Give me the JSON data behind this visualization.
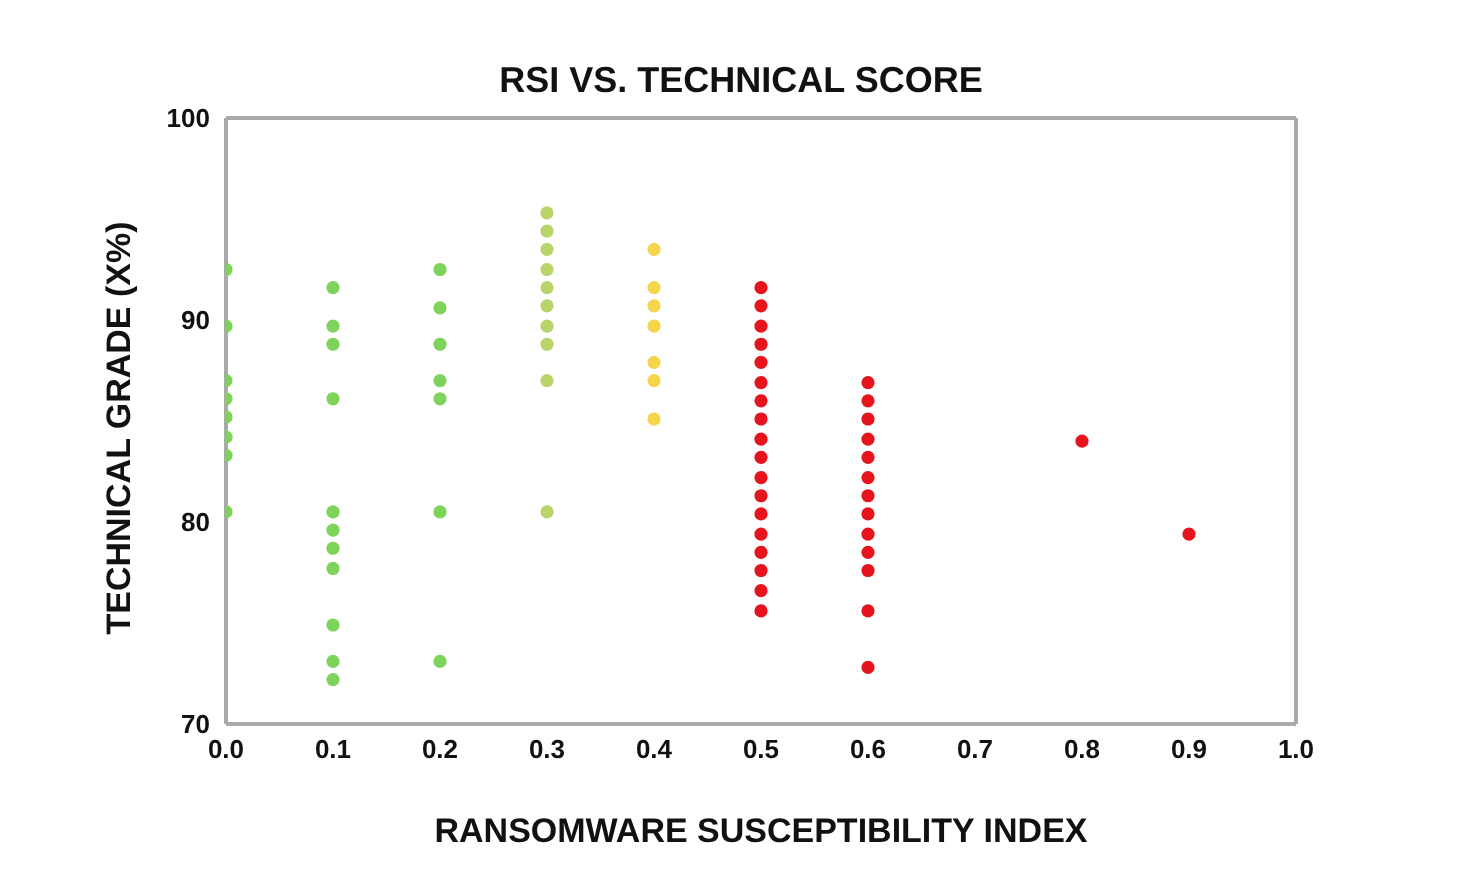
{
  "chart_data": {
    "type": "scatter",
    "title": "RSI VS. TECHNICAL SCORE",
    "xlabel": "RANSOMWARE SUSCEPTIBILITY INDEX",
    "ylabel": "TECHNICAL GRADE (X%)",
    "series": [
      {
        "color": "#7ed35a",
        "x": [
          0,
          0,
          0,
          0,
          0,
          0,
          0,
          0,
          0.1,
          0.1,
          0.1,
          0.1,
          0.1,
          0.1,
          0.1,
          0.1,
          0.1,
          0.1,
          0.1,
          0.2,
          0.2,
          0.2,
          0.2,
          0.2,
          0.2,
          0.2
        ],
        "values": [
          92.5,
          89.7,
          87.0,
          86.1,
          85.2,
          84.2,
          83.3,
          80.5,
          91.6,
          89.7,
          88.8,
          86.1,
          80.5,
          79.6,
          78.7,
          77.7,
          74.9,
          73.1,
          72.2,
          92.5,
          90.6,
          88.8,
          87.0,
          86.1,
          80.5,
          73.1
        ]
      },
      {
        "color": "#b9d46b",
        "x": [
          0.3,
          0.3,
          0.3,
          0.3,
          0.3,
          0.3,
          0.3,
          0.3,
          0.3,
          0.3
        ],
        "values": [
          95.3,
          94.4,
          93.5,
          92.5,
          91.6,
          90.7,
          89.7,
          88.8,
          87.0,
          80.5
        ]
      },
      {
        "color": "#f5d54c",
        "x": [
          0.4,
          0.4,
          0.4,
          0.4,
          0.4,
          0.4,
          0.4
        ],
        "values": [
          93.5,
          91.6,
          90.7,
          89.7,
          87.9,
          87.0,
          85.1
        ]
      },
      {
        "color": "#e5141d",
        "x": [
          0.5,
          0.5,
          0.5,
          0.5,
          0.5,
          0.5,
          0.5,
          0.5,
          0.5,
          0.5,
          0.5,
          0.5,
          0.5,
          0.5,
          0.5,
          0.5,
          0.5,
          0.5,
          0.6,
          0.6,
          0.6,
          0.6,
          0.6,
          0.6,
          0.6,
          0.6,
          0.6,
          0.6,
          0.6,
          0.6,
          0.6,
          0.8,
          0.9
        ],
        "values": [
          91.6,
          90.7,
          89.7,
          88.8,
          87.9,
          86.9,
          86.0,
          85.1,
          84.1,
          83.2,
          82.2,
          81.3,
          80.4,
          79.4,
          78.5,
          77.6,
          76.6,
          75.6,
          86.9,
          86.0,
          85.1,
          84.1,
          83.2,
          82.2,
          81.3,
          80.4,
          79.4,
          78.5,
          77.6,
          75.6,
          72.8,
          84.0,
          79.4
        ]
      }
    ],
    "xlim": [
      0,
      1
    ],
    "xticks": [
      {
        "value": 0,
        "label": "0.0"
      },
      {
        "value": 0.1,
        "label": "0.1"
      },
      {
        "value": 0.2,
        "label": "0.2"
      },
      {
        "value": 0.3,
        "label": "0.3"
      },
      {
        "value": 0.4,
        "label": "0.4"
      },
      {
        "value": 0.5,
        "label": "0.5"
      },
      {
        "value": 0.6,
        "label": "0.6"
      },
      {
        "value": 0.7,
        "label": "0.7"
      },
      {
        "value": 0.8,
        "label": "0.8"
      },
      {
        "value": 0.9,
        "label": "0.9"
      },
      {
        "value": 1,
        "label": "1.0"
      }
    ],
    "ylim": [
      70,
      100
    ],
    "yticks": [
      70,
      80,
      90,
      100
    ],
    "marker": "circle",
    "grid": false,
    "legend": false
  }
}
